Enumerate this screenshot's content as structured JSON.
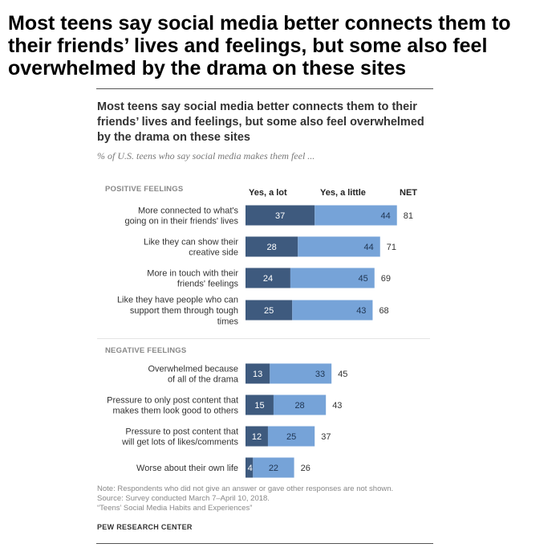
{
  "headline": "Most teens say social media better connects them to their friends’ lives and feelings, but some also feel overwhelmed by the drama on these sites",
  "chart_data": {
    "type": "bar",
    "stacked": true,
    "title": "Most teens say social media better connects them to their friends’ lives and feelings, but some also feel overwhelmed by the drama on these sites",
    "subtitle": "% of U.S. teens who say social media makes them feel ...",
    "columns": {
      "lot": "Yes, a lot",
      "little": "Yes, a little",
      "net": "NET"
    },
    "colors": {
      "lot": "#3e5a7e",
      "little": "#76a3d8"
    },
    "groups": [
      {
        "name": "POSITIVE FEELINGS",
        "items": [
          {
            "label": [
              "More connected to what's",
              "going on in their friends' lives"
            ],
            "lot": 37,
            "little": 44,
            "net": 81
          },
          {
            "label": [
              "Like they can show their",
              "creative side"
            ],
            "lot": 28,
            "little": 44,
            "net": 71
          },
          {
            "label": [
              "More in touch with their",
              "friends' feelings"
            ],
            "lot": 24,
            "little": 45,
            "net": 69
          },
          {
            "label": [
              "Like they have people who can",
              "support them through tough",
              "times"
            ],
            "lot": 25,
            "little": 43,
            "net": 68
          }
        ]
      },
      {
        "name": "NEGATIVE FEELINGS",
        "items": [
          {
            "label": [
              "Overwhelmed because",
              "of all of the drama"
            ],
            "lot": 13,
            "little": 33,
            "net": 45
          },
          {
            "label": [
              "Pressure to only post content that",
              "makes them look good to others"
            ],
            "lot": 15,
            "little": 28,
            "net": 43
          },
          {
            "label": [
              "Pressure to post content that",
              "will get lots of likes/comments"
            ],
            "lot": 12,
            "little": 25,
            "net": 37
          },
          {
            "label": [
              "Worse about their own life"
            ],
            "lot": 4,
            "little": 22,
            "net": 26
          }
        ]
      }
    ]
  },
  "footnote": {
    "note": "Note: Respondents who did not give an answer or gave other responses are not shown.",
    "source": "Source: Survey conducted March 7–April 10, 2018.",
    "report": "“Teens’ Social Media Habits and Experiences”"
  },
  "brand": "PEW RESEARCH CENTER"
}
